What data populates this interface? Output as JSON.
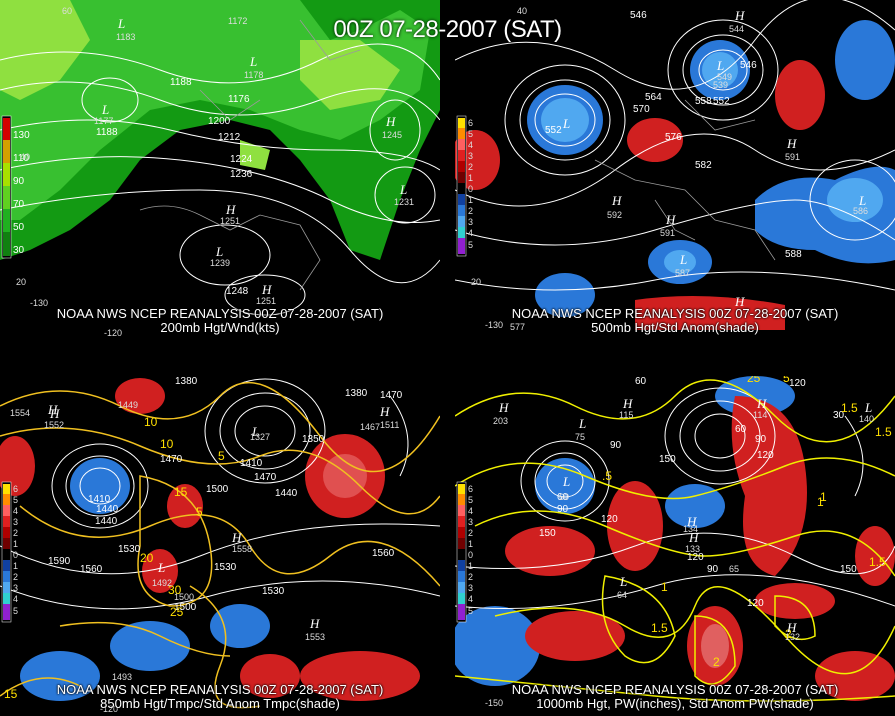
{
  "title": "00Z 07-28-2007 (SAT)",
  "panels": [
    {
      "caption_line1": "NOAA NWS NCEP REANALYSIS 00Z 07-28-2007 (SAT)",
      "caption_line2": "200mb Hgt/Wnd(kts)",
      "legend": [
        "130",
        "110",
        "90",
        "70",
        "50",
        "30"
      ],
      "legend_colors": [
        "#d40000",
        "#d4a000",
        "#a8e000",
        "#60d020",
        "#20b020",
        "#108010"
      ],
      "contours": [
        "1188",
        "1188",
        "1176",
        "1200",
        "1212",
        "1224",
        "1236",
        "1248"
      ],
      "centers": [
        "1183",
        "1172",
        "1178",
        "1177",
        "1245",
        "1231",
        "1251",
        "1239",
        "1251"
      ],
      "ticks": [
        "60",
        "40",
        "20",
        "-130",
        "-120"
      ]
    },
    {
      "caption_line1": "NOAA NWS NCEP REANALYSIS 00Z 07-28-2007 (SAT)",
      "caption_line2": "500mb Hgt/Std Anom(shade)",
      "legend": [
        "6",
        "5",
        "4",
        "3",
        "2",
        "1",
        "0",
        "1",
        "2",
        "3",
        "4",
        "5"
      ],
      "contours": [
        "546",
        "546",
        "552",
        "558",
        "564",
        "570",
        "576",
        "582",
        "588",
        "552"
      ],
      "centers": [
        "544",
        "549",
        "539",
        "591",
        "586",
        "592",
        "591",
        "587",
        "577"
      ],
      "ticks": [
        "40",
        "20",
        "-130"
      ]
    },
    {
      "caption_line1": "NOAA NWS NCEP REANALYSIS 00Z 07-28-2007 (SAT)",
      "caption_line2": "850mb Hgt/Tmpc/Std Anom Tmpc(shade)",
      "legend": [
        "6",
        "5",
        "4",
        "3",
        "2",
        "1",
        "0",
        "1",
        "2",
        "3",
        "4",
        "5"
      ],
      "contours": [
        "1380",
        "1470",
        "1500",
        "1410",
        "1440",
        "1470",
        "1530",
        "1560",
        "1590",
        "1560",
        "1500",
        "1530",
        "1530",
        "1440",
        "1380",
        "1350",
        "1470",
        "1410",
        "1440"
      ],
      "temps": [
        "10",
        "5",
        "10",
        "15",
        "20",
        "25",
        "30",
        "5",
        "15"
      ],
      "centers": [
        "1552",
        "1449",
        "1327",
        "1511",
        "1558",
        "1553",
        "1492",
        "1493",
        "1554",
        "1467",
        "1500"
      ],
      "ticks": [
        "-120"
      ]
    },
    {
      "caption_line1": "NOAA NWS NCEP REANALYSIS 00Z 07-28-2007 (SAT)",
      "caption_line2": "1000mb Hgt, PW(inches), Std Anom PW(shade)",
      "legend": [
        "6",
        "5",
        "4",
        "3",
        "2",
        "1",
        "0",
        "1",
        "2",
        "3",
        "4",
        "5"
      ],
      "contours": [
        "60",
        "120",
        "90",
        "120",
        "90",
        "60",
        "150",
        "120",
        "90",
        "120",
        "150",
        "90",
        "120",
        "150",
        "30",
        "60"
      ],
      "pw": [
        "25",
        "5",
        ".5",
        "1.5",
        "1",
        "1.5",
        "1",
        "2",
        "1.5",
        "1",
        "1.5",
        "2"
      ],
      "centers": [
        "203",
        "115",
        "75",
        "133",
        "114",
        "134",
        "132",
        "64",
        "65",
        "140",
        "60"
      ],
      "ticks": [
        "-150"
      ]
    }
  ]
}
